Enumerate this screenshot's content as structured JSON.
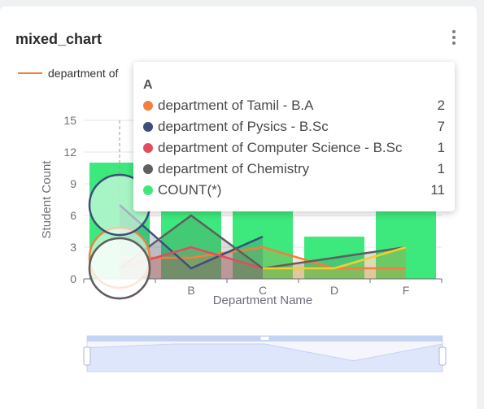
{
  "card": {
    "title": "mixed_chart",
    "menu_icon": "kebab-menu-icon"
  },
  "legend": {
    "label": "department of",
    "color": "#f47e3d"
  },
  "tooltip": {
    "header": "A",
    "rows": [
      {
        "label": "department of Tamil - B.A",
        "value": "2",
        "color": "#f47e3d"
      },
      {
        "label": "department of Pysics - B.Sc",
        "value": "7",
        "color": "#3d4d7c"
      },
      {
        "label": "department of Computer Science - B.Sc",
        "value": "1",
        "color": "#e24c5e"
      },
      {
        "label": "department of Chemistry",
        "value": "1",
        "color": "#5f5f5f"
      },
      {
        "label": "COUNT(*)",
        "value": "11",
        "color": "#3de87c"
      }
    ]
  },
  "chart_data": {
    "type": "bar",
    "xlabel": "Department Name",
    "ylabel": "Student Count",
    "ylim": [
      0,
      15
    ],
    "yticks": [
      0,
      3,
      6,
      9,
      12,
      15
    ],
    "categories": [
      "A",
      "B",
      "C",
      "D",
      "F"
    ],
    "tick_labels": [
      "",
      "B",
      "C",
      "D",
      "F"
    ],
    "grid": true,
    "legend_position": "top-left",
    "series": [
      {
        "name": "COUNT(*)",
        "kind": "bar",
        "color": "#3de87c",
        "values": [
          11,
          13,
          13,
          4,
          13
        ]
      },
      {
        "name": "department of Tamil - B.A",
        "kind": "line",
        "color": "#f47e3d",
        "values": [
          2,
          2,
          3,
          1,
          1
        ]
      },
      {
        "name": "department of Pysics - B.Sc",
        "kind": "line",
        "color": "#3d4d7c",
        "values": [
          7,
          1,
          4,
          null,
          null
        ]
      },
      {
        "name": "department of Computer Science - B.Sc",
        "kind": "line",
        "color": "#e24c5e",
        "values": [
          1,
          3,
          1,
          null,
          null
        ]
      },
      {
        "name": "department of Chemistry",
        "kind": "line",
        "color": "#5f5f5f",
        "values": [
          1,
          6,
          1,
          2,
          3
        ]
      },
      {
        "kind": "line",
        "color": "#f0d030",
        "values": [
          null,
          null,
          1,
          1,
          3
        ]
      }
    ],
    "focused_category": "A",
    "colors": {
      "axis": "#6e7079",
      "grid": "#e4e4e4",
      "dataZoom": "#dde6fb"
    }
  },
  "data_zoom": {
    "handle_icon": "grip-icon",
    "range_start": 0,
    "range_end": 100
  }
}
